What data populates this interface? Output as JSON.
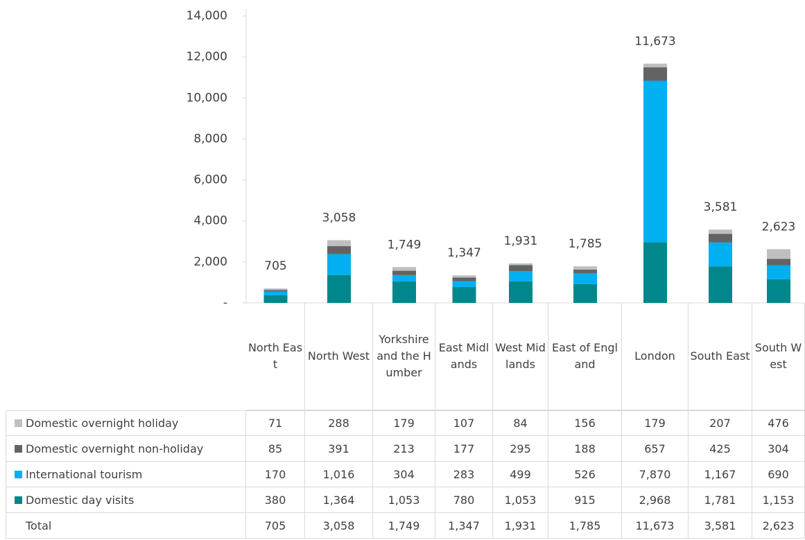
{
  "chart_data": {
    "type": "stacked_bar",
    "categories": [
      "North East",
      "North West",
      "Yorkshire and the Humber",
      "East Midlands",
      "West Midlands",
      "East of England",
      "London",
      "South East",
      "South West"
    ],
    "series": [
      {
        "name": "Domestic day visits",
        "color": "#00878c",
        "values": [
          380,
          1364,
          1053,
          780,
          1053,
          915,
          2968,
          1781,
          1153
        ],
        "value_labels": [
          "380",
          "1,364",
          "1,053",
          "780",
          "1,053",
          "915",
          "2,968",
          "1,781",
          "1,153"
        ]
      },
      {
        "name": "International tourism",
        "color": "#00b0f0",
        "values": [
          170,
          1016,
          304,
          283,
          499,
          526,
          7870,
          1167,
          690
        ],
        "value_labels": [
          "170",
          "1,016",
          "304",
          "283",
          "499",
          "526",
          "7,870",
          "1,167",
          "690"
        ]
      },
      {
        "name": "Domestic overnight non-holiday",
        "color": "#636363",
        "values": [
          85,
          391,
          213,
          177,
          295,
          188,
          657,
          425,
          304
        ],
        "value_labels": [
          "85",
          "391",
          "213",
          "177",
          "295",
          "188",
          "657",
          "425",
          "304"
        ]
      },
      {
        "name": "Domestic overnight holiday",
        "color": "#bfbfbf",
        "values": [
          71,
          288,
          179,
          107,
          84,
          156,
          179,
          207,
          476
        ],
        "value_labels": [
          "71",
          "288",
          "179",
          "107",
          "84",
          "156",
          "179",
          "207",
          "476"
        ]
      }
    ],
    "totals": {
      "name": "Total",
      "values": [
        705,
        3058,
        1749,
        1347,
        1931,
        1785,
        11673,
        3581,
        2623
      ],
      "value_labels": [
        "705",
        "3,058",
        "1,749",
        "1,347",
        "1,931",
        "1,785",
        "11,673",
        "3,581",
        "2,623"
      ]
    },
    "ylim": [
      0,
      14000
    ],
    "yticks": [
      {
        "value": 0,
        "label": "-"
      },
      {
        "value": 2000,
        "label": "2,000"
      },
      {
        "value": 4000,
        "label": "4,000"
      },
      {
        "value": 6000,
        "label": "6,000"
      },
      {
        "value": 8000,
        "label": "8,000"
      },
      {
        "value": 10000,
        "label": "10,000"
      },
      {
        "value": 12000,
        "label": "12,000"
      },
      {
        "value": 14000,
        "label": "14,000"
      }
    ],
    "table_row_order": [
      3,
      2,
      1,
      0
    ]
  }
}
